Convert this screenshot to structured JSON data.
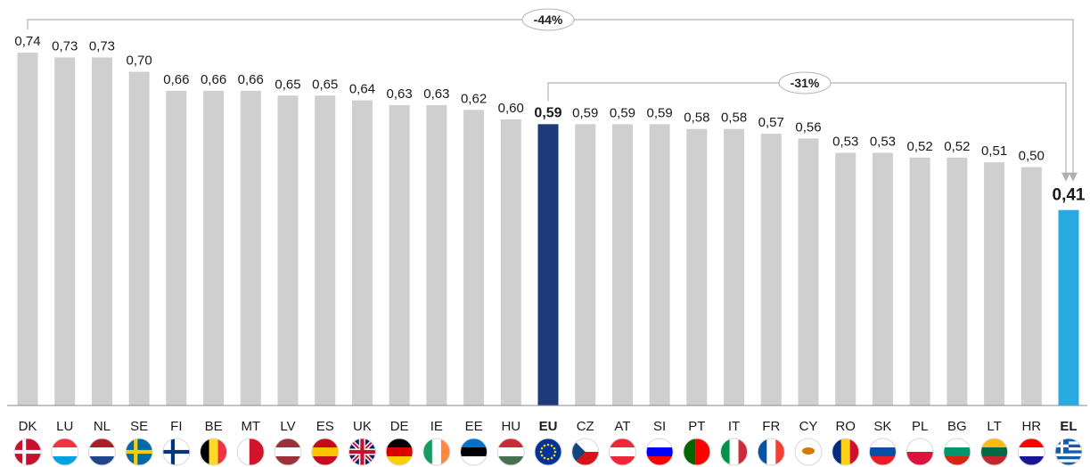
{
  "chart_data": {
    "type": "bar",
    "title": "",
    "xlabel": "",
    "ylabel": "",
    "ylim": [
      0,
      0.8
    ],
    "grid": false,
    "legend": "none",
    "categories": [
      "DK",
      "LU",
      "NL",
      "SE",
      "FI",
      "BE",
      "MT",
      "LV",
      "ES",
      "UK",
      "DE",
      "IE",
      "EE",
      "HU",
      "EU",
      "CZ",
      "AT",
      "SI",
      "PT",
      "IT",
      "FR",
      "CY",
      "RO",
      "SK",
      "PL",
      "BG",
      "LT",
      "HR",
      "EL"
    ],
    "values": [
      0.74,
      0.73,
      0.73,
      0.7,
      0.66,
      0.66,
      0.66,
      0.65,
      0.65,
      0.64,
      0.63,
      0.63,
      0.62,
      0.6,
      0.59,
      0.59,
      0.59,
      0.59,
      0.58,
      0.58,
      0.57,
      0.56,
      0.53,
      0.53,
      0.52,
      0.52,
      0.51,
      0.5,
      0.41
    ],
    "value_labels": [
      "0,74",
      "0,73",
      "0,73",
      "0,70",
      "0,66",
      "0,66",
      "0,66",
      "0,65",
      "0,65",
      "0,64",
      "0,63",
      "0,63",
      "0,62",
      "0,60",
      "0,59",
      "0,59",
      "0,59",
      "0,59",
      "0,58",
      "0,58",
      "0,57",
      "0,56",
      "0,53",
      "0,53",
      "0,52",
      "0,52",
      "0,51",
      "0,50",
      "0,41"
    ],
    "highlighted": {
      "EU": "#1f3a78",
      "EL": "#29abe2"
    },
    "default_bar_color": "#cfcfcf",
    "annotations": [
      {
        "label": "-44%",
        "from": "DK",
        "to": "EL"
      },
      {
        "label": "-31%",
        "from": "EU",
        "to": "EL"
      }
    ]
  },
  "flags": {
    "DK": {
      "type": "nordic",
      "bg": "#c8102e",
      "cross": "#ffffff"
    },
    "LU": {
      "type": "hstripes",
      "colors": [
        "#ef3340",
        "#ffffff",
        "#00a3e0"
      ]
    },
    "NL": {
      "type": "hstripes",
      "colors": [
        "#ae1c28",
        "#ffffff",
        "#21468b"
      ]
    },
    "SE": {
      "type": "nordic",
      "bg": "#006aa7",
      "cross": "#fecc00"
    },
    "FI": {
      "type": "nordic",
      "bg": "#ffffff",
      "cross": "#003580"
    },
    "BE": {
      "type": "vstripes",
      "colors": [
        "#000000",
        "#fdda24",
        "#ef3340"
      ]
    },
    "MT": {
      "type": "vstripes2",
      "colors": [
        "#ffffff",
        "#cf142b"
      ]
    },
    "LV": {
      "type": "hstripes",
      "colors": [
        "#9e3039",
        "#ffffff",
        "#9e3039"
      ]
    },
    "ES": {
      "type": "hstripes",
      "colors": [
        "#c60b1e",
        "#ffc400",
        "#c60b1e"
      ]
    },
    "UK": {
      "type": "union",
      "colors": [
        "#012169",
        "#ffffff",
        "#c8102e"
      ]
    },
    "DE": {
      "type": "hstripes",
      "colors": [
        "#000000",
        "#dd0000",
        "#ffce00"
      ]
    },
    "IE": {
      "type": "vstripes",
      "colors": [
        "#169b62",
        "#ffffff",
        "#ff883e"
      ]
    },
    "EE": {
      "type": "hstripes",
      "colors": [
        "#0072ce",
        "#000000",
        "#ffffff"
      ]
    },
    "HU": {
      "type": "hstripes",
      "colors": [
        "#ce2939",
        "#ffffff",
        "#477050"
      ]
    },
    "EU": {
      "type": "eu",
      "colors": [
        "#003399",
        "#ffcc00"
      ]
    },
    "CZ": {
      "type": "czech",
      "colors": [
        "#ffffff",
        "#d7141a",
        "#11457e"
      ]
    },
    "AT": {
      "type": "hstripes",
      "colors": [
        "#ed2939",
        "#ffffff",
        "#ed2939"
      ]
    },
    "SI": {
      "type": "hstripes",
      "colors": [
        "#ffffff",
        "#0000ff",
        "#ff0000"
      ]
    },
    "PT": {
      "type": "vstripes2",
      "colors": [
        "#006600",
        "#ff0000"
      ]
    },
    "IT": {
      "type": "vstripes",
      "colors": [
        "#009246",
        "#ffffff",
        "#ce2b37"
      ]
    },
    "FR": {
      "type": "vstripes",
      "colors": [
        "#0055a4",
        "#ffffff",
        "#ef4135"
      ]
    },
    "CY": {
      "type": "cyprus",
      "colors": [
        "#ffffff",
        "#d57800"
      ]
    },
    "RO": {
      "type": "vstripes",
      "colors": [
        "#002b7f",
        "#fcd116",
        "#ce1126"
      ]
    },
    "SK": {
      "type": "hstripes",
      "colors": [
        "#ffffff",
        "#0b4ea2",
        "#ee1c25"
      ]
    },
    "PL": {
      "type": "hstripes2",
      "colors": [
        "#ffffff",
        "#dc143c"
      ]
    },
    "BG": {
      "type": "hstripes",
      "colors": [
        "#ffffff",
        "#00966e",
        "#d62612"
      ]
    },
    "LT": {
      "type": "hstripes",
      "colors": [
        "#fdb913",
        "#006a44",
        "#c1272d"
      ]
    },
    "HR": {
      "type": "hstripes",
      "colors": [
        "#ff0000",
        "#ffffff",
        "#171796"
      ]
    },
    "EL": {
      "type": "greece",
      "colors": [
        "#0d5eaf",
        "#ffffff"
      ]
    }
  }
}
